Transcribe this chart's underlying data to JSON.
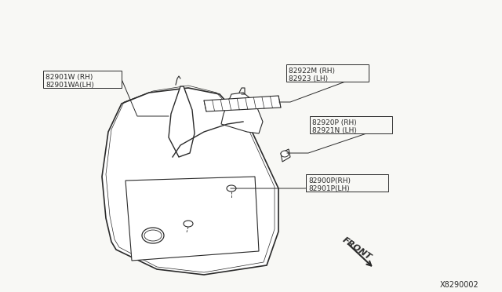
{
  "background_color": "#f8f8f5",
  "line_color": "#2a2a2a",
  "text_color": "#2a2a2a",
  "diagram_number": "X8290002",
  "labels": {
    "top_left": [
      "82901W (RH)",
      "82901WA(LH)"
    ],
    "top_right": [
      "82922M (RH)",
      "82923 (LH)"
    ],
    "middle_right": [
      "82920P (RH)",
      "82921N (LH)"
    ],
    "bottom_right": [
      "82900P(RH)",
      "82901P(LH)"
    ],
    "front": "FRONT"
  },
  "font_size": 6.5,
  "diagram_font_size": 7.0
}
